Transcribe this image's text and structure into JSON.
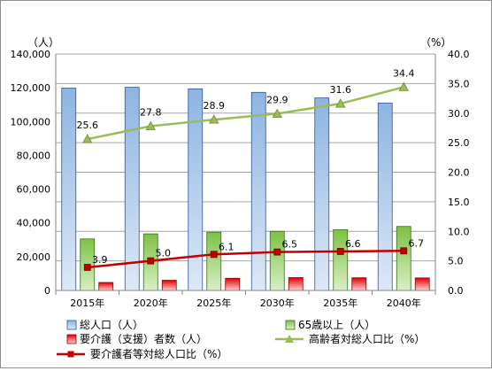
{
  "chart_data": {
    "type": "bar",
    "categories": [
      "2015年",
      "2020年",
      "2025年",
      "2030年",
      "2035年",
      "2040年"
    ],
    "left_unit": "（人）",
    "right_unit": "（%）",
    "y_left": {
      "min": 0,
      "max": 140000,
      "step": 20000,
      "tick_labels": [
        "0",
        "20,000",
        "40,000",
        "60,000",
        "80,000",
        "100,000",
        "120,000",
        "140,000"
      ]
    },
    "y_right": {
      "min": 0,
      "max": 40,
      "step": 5,
      "tick_labels": [
        "0.0",
        "5.0",
        "10.0",
        "15.0",
        "20.0",
        "25.0",
        "30.0",
        "35.0",
        "40.0"
      ]
    },
    "grid": true,
    "legend_position": "bottom",
    "bar_series": [
      {
        "name": "総人口（人）",
        "values": [
          119800,
          120300,
          119400,
          117300,
          114000,
          111000
        ],
        "color": "#8db4e2"
      },
      {
        "name": "65歳以上（人）",
        "values": [
          30500,
          33500,
          34500,
          35000,
          36000,
          37900
        ],
        "color": "#92d050"
      },
      {
        "name": "要介護（支援）者数（人）",
        "values": [
          4700,
          6000,
          7200,
          7600,
          7500,
          7400
        ],
        "color": "#ff0000"
      }
    ],
    "line_series": [
      {
        "name": "高齢者対総人口比（%）",
        "values": [
          25.6,
          27.8,
          28.9,
          29.9,
          31.6,
          34.4
        ],
        "labels": [
          "25.6",
          "27.8",
          "28.9",
          "29.9",
          "31.6",
          "34.4"
        ],
        "color": "#9bbb59",
        "marker": "triangle"
      },
      {
        "name": "要介護者等対総人口比（%）",
        "values": [
          3.9,
          5.0,
          6.1,
          6.5,
          6.6,
          6.7
        ],
        "labels": [
          "3.9",
          "5.0",
          "6.1",
          "6.5",
          "6.6",
          "6.7"
        ],
        "color": "#c00000",
        "marker": "square"
      }
    ]
  }
}
